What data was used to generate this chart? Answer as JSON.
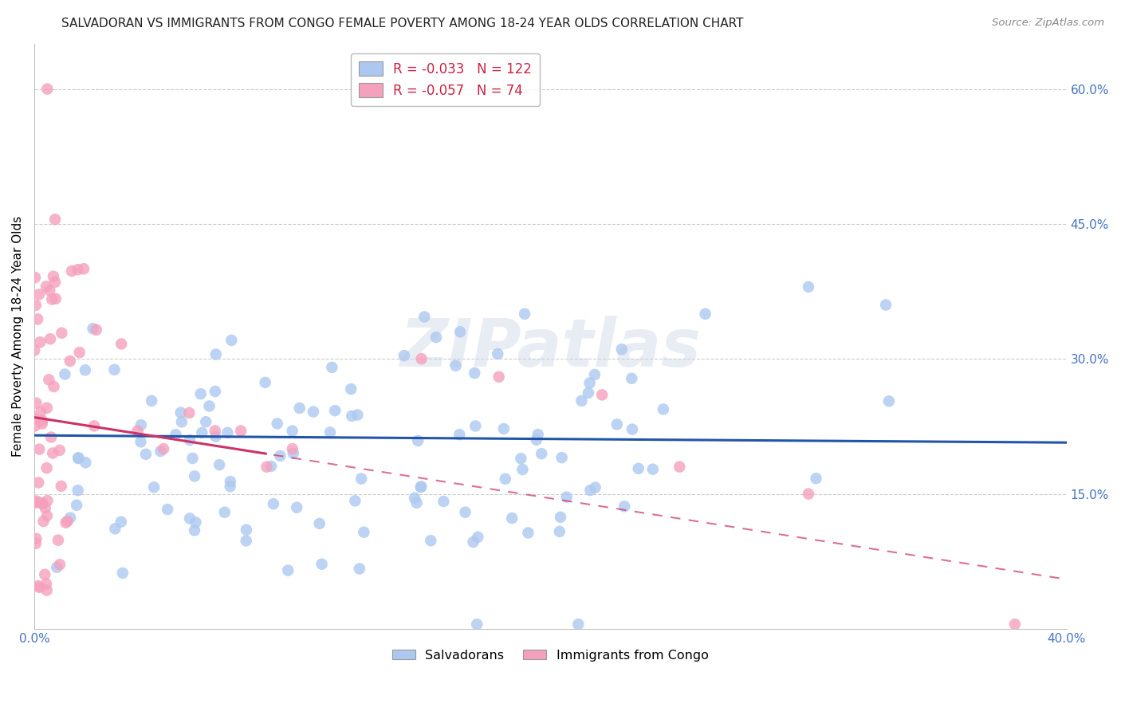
{
  "title": "SALVADORAN VS IMMIGRANTS FROM CONGO FEMALE POVERTY AMONG 18-24 YEAR OLDS CORRELATION CHART",
  "source": "Source: ZipAtlas.com",
  "ylabel": "Female Poverty Among 18-24 Year Olds",
  "xlim": [
    0.0,
    0.4
  ],
  "ylim": [
    0.0,
    0.65
  ],
  "salvadoran_color": "#adc8f0",
  "congo_color": "#f5a0bc",
  "trend_salvadoran_color": "#2255aa",
  "trend_congo_color": "#cc3366",
  "watermark": "ZIPatlas",
  "R_salvadoran": -0.033,
  "N_salvadoran": 122,
  "R_congo": -0.057,
  "N_congo": 74,
  "legend_label_1": "Salvadorans",
  "legend_label_2": "Immigrants from Congo",
  "title_color": "#222222",
  "source_color": "#888888",
  "axis_label_color": "#4472c4",
  "grid_color": "#cccccc",
  "right_label_color": "#4472c4"
}
